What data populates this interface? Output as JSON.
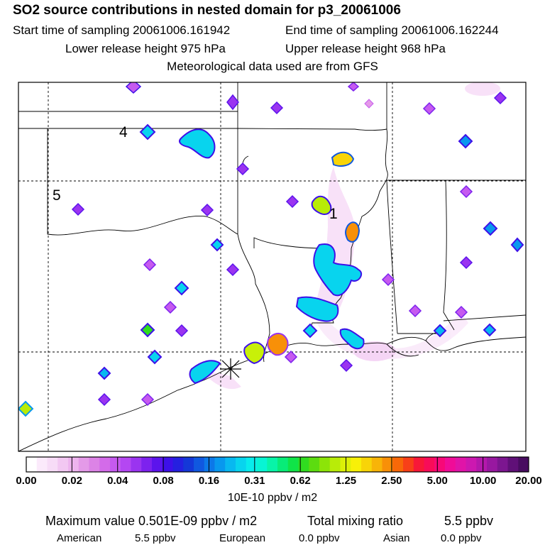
{
  "header": {
    "title": "SO2 source contributions in nested domain for p3_20061006",
    "start_time": "Start time of sampling 20061006.161942",
    "end_time": "End time of sampling 20061006.162244",
    "lower_release": "Lower release height  975 hPa",
    "upper_release": "Upper release height  968 hPa",
    "met_data": "Meteorological data used are from GFS"
  },
  "map": {
    "labels": [
      "4",
      "5",
      "1"
    ],
    "source_marker": "cross-marker"
  },
  "colorbar": {
    "labels": [
      "0.00",
      "0.02",
      "0.04",
      "0.08",
      "0.16",
      "0.31",
      "0.62",
      "1.25",
      "2.50",
      "5.00",
      "10.00",
      "20.00"
    ],
    "colors": [
      "#ffffff",
      "#fbeafb",
      "#f7dcf7",
      "#f2c8f2",
      "#edb4ee",
      "#e49ae8",
      "#dc83e6",
      "#d36be9",
      "#c55aef",
      "#b447f2",
      "#9a34f0",
      "#7d22ee",
      "#5c14ec",
      "#3d10e8",
      "#2520e0",
      "#1438d8",
      "#1058e0",
      "#0c78e8",
      "#0898ee",
      "#08b8f0",
      "#08d4ee",
      "#08ecec",
      "#08f4d4",
      "#08f4a8",
      "#08ec78",
      "#10e448",
      "#30dc20",
      "#5cdc10",
      "#8ce408",
      "#b8ec08",
      "#dcf008",
      "#f8f008",
      "#f8d408",
      "#f8b408",
      "#f89008",
      "#f86808",
      "#f84018",
      "#f81838",
      "#f80c58",
      "#f80878",
      "#f00c98",
      "#e014a8",
      "#cc18b0",
      "#b418ac",
      "#9818a0",
      "#7c1690",
      "#601078",
      "#480c60"
    ],
    "units": "10E-10 ppbv / m2"
  },
  "footer": {
    "max_value": "Maximum value  0.501E-09 ppbv / m2",
    "total_label": "Total mixing ratio",
    "total_value": "5.5 ppbv",
    "american_label": "American",
    "american_value": "5.5 ppbv",
    "european_label": "European",
    "european_value": "0.0 ppbv",
    "asian_label": "Asian",
    "asian_value": "0.0 ppbv"
  }
}
